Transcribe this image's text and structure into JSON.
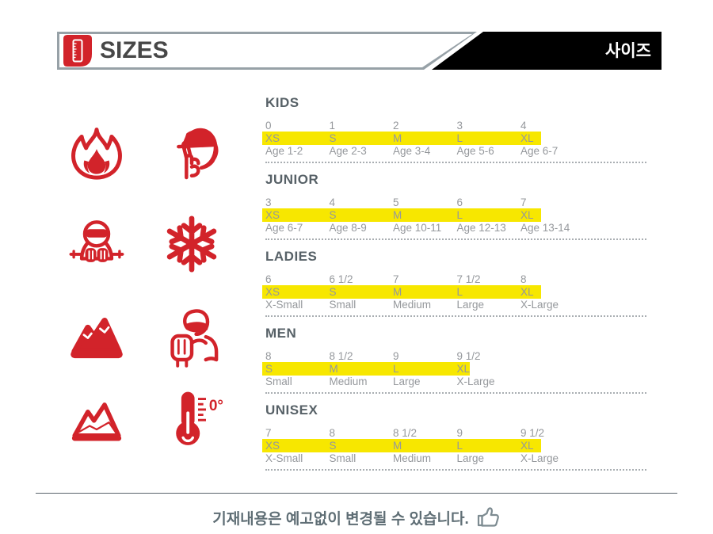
{
  "colors": {
    "accent_red": "#d2232a",
    "highlight_yellow": "#f7e700",
    "header_border_gray": "#97a1a7",
    "black_box": "#000000",
    "table_text_gray": "#95989c",
    "section_title_gray": "#576167",
    "footer_text_gray": "#5f6e75"
  },
  "header": {
    "title": "SIZES",
    "korean_label": "사이즈",
    "logo_icon": "ruler-icon"
  },
  "icon_panel": {
    "items": [
      {
        "name": "flame-icon"
      },
      {
        "name": "face-protection-icon"
      },
      {
        "name": "skier-icon"
      },
      {
        "name": "snowflake-icon"
      },
      {
        "name": "mountain-peaks-filled-icon"
      },
      {
        "name": "gloved-person-icon"
      },
      {
        "name": "mountain-peaks-outline-icon"
      },
      {
        "name": "thermometer-icon",
        "label": "0°"
      }
    ]
  },
  "size_tables": {
    "sections": [
      {
        "name": "KIDS",
        "numbers": [
          "0",
          "1",
          "2",
          "3",
          "4"
        ],
        "sizes": [
          "XS",
          "S",
          "M",
          "L",
          "XL"
        ],
        "labels": [
          "Age 1-2",
          "Age 2-3",
          "Age 3-4",
          "Age 5-6",
          "Age 6-7"
        ]
      },
      {
        "name": "JUNIOR",
        "numbers": [
          "3",
          "4",
          "5",
          "6",
          "7"
        ],
        "sizes": [
          "XS",
          "S",
          "M",
          "L",
          "XL"
        ],
        "labels": [
          "Age 6-7",
          "Age 8-9",
          "Age 10-11",
          "Age 12-13",
          "Age 13-14"
        ]
      },
      {
        "name": "LADIES",
        "numbers": [
          "6",
          "6 1/2",
          "7",
          "7 1/2",
          "8"
        ],
        "sizes": [
          "XS",
          "S",
          "M",
          "L",
          "XL"
        ],
        "labels": [
          "X-Small",
          "Small",
          "Medium",
          "Large",
          "X-Large"
        ]
      },
      {
        "name": "MEN",
        "numbers": [
          "8",
          "8 1/2",
          "9",
          "9 1/2"
        ],
        "sizes": [
          "S",
          "M",
          "L",
          "XL"
        ],
        "labels": [
          "Small",
          "Medium",
          "Large",
          "X-Large"
        ]
      },
      {
        "name": "UNISEX",
        "numbers": [
          "7",
          "8",
          "8 1/2",
          "9",
          "9 1/2"
        ],
        "sizes": [
          "XS",
          "S",
          "M",
          "L",
          "XL"
        ],
        "labels": [
          "X-Small",
          "Small",
          "Medium",
          "Large",
          "X-Large"
        ]
      }
    ]
  },
  "footer": {
    "notice": "기재내용은 예고없이 변경될 수 있습니다.",
    "icon": "thumbs-up-icon"
  }
}
